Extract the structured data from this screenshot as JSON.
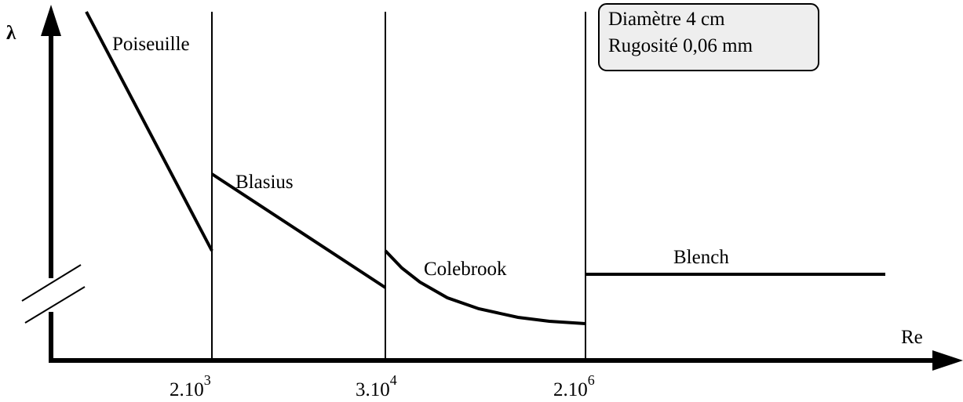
{
  "axes": {
    "y_label": "λ",
    "x_label": "Re"
  },
  "ticks": [
    {
      "base": "2.10",
      "exp": "3"
    },
    {
      "base": "3.10",
      "exp": "4"
    },
    {
      "base": "2.10",
      "exp": "6"
    }
  ],
  "regions": [
    "Poiseuille",
    "Blasius",
    "Colebrook",
    "Blench"
  ],
  "info_box": {
    "lines": [
      "Diamètre 4 cm",
      "Rugosité 0,06 mm"
    ]
  }
}
